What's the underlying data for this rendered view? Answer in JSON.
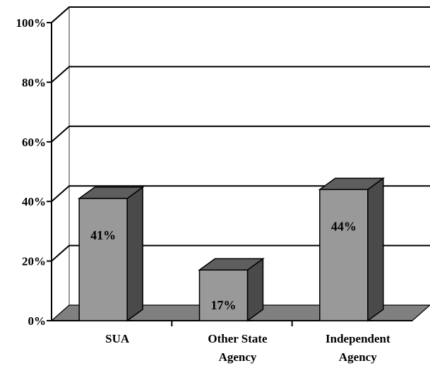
{
  "chart_data": {
    "type": "bar",
    "categories": [
      "SUA",
      "Other State Agency",
      "Independent Agency"
    ],
    "category_label_lines": [
      [
        "SUA"
      ],
      [
        "Other State",
        "Agency"
      ],
      [
        "Independent",
        "Agency"
      ]
    ],
    "values": [
      41,
      17,
      44
    ],
    "data_labels": [
      "41%",
      "17%",
      "44%"
    ],
    "y_ticks": [
      "0%",
      "20%",
      "40%",
      "60%",
      "80%",
      "100%"
    ],
    "ylim": [
      0,
      100
    ],
    "title": "",
    "xlabel": "",
    "ylabel": "",
    "grid": true,
    "legend": "none",
    "style": "3d-column"
  },
  "colors": {
    "bar_front": "#999999",
    "bar_top": "#5e5e5e",
    "bar_side": "#4a4a4a",
    "floor": "#808080",
    "gridline": "#000000",
    "wall_edge": "#9a9a9a"
  }
}
